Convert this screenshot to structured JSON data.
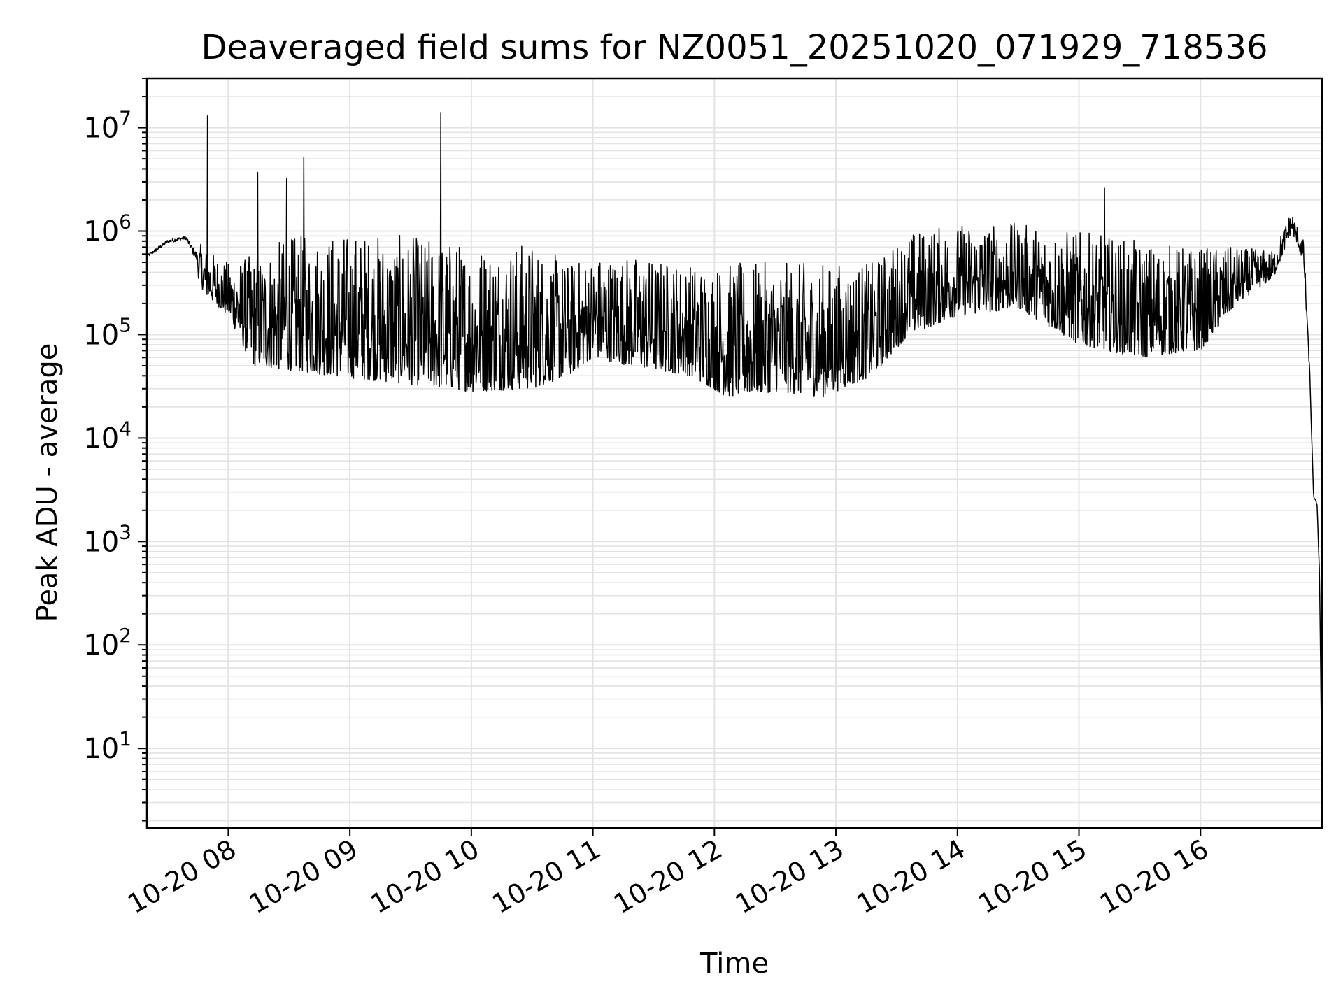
{
  "chart_data": {
    "type": "line",
    "title": "Deaveraged field sums for NZ0051_20251020_071929_718536",
    "xlabel": "Time",
    "ylabel": "Peak ADU - average",
    "yscale": "log",
    "ylim": [
      1.7,
      30000000
    ],
    "xlim_hours": [
      7.33,
      17.0
    ],
    "grid": true,
    "x_ticks": [
      {
        "hour": 8,
        "label": "10-20 08"
      },
      {
        "hour": 9,
        "label": "10-20 09"
      },
      {
        "hour": 10,
        "label": "10-20 10"
      },
      {
        "hour": 11,
        "label": "10-20 11"
      },
      {
        "hour": 12,
        "label": "10-20 12"
      },
      {
        "hour": 13,
        "label": "10-20 13"
      },
      {
        "hour": 14,
        "label": "10-20 14"
      },
      {
        "hour": 15,
        "label": "10-20 15"
      },
      {
        "hour": 16,
        "label": "10-20 16"
      }
    ],
    "y_ticks": [
      {
        "exp": 1,
        "base": "10",
        "sup": "1"
      },
      {
        "exp": 2,
        "base": "10",
        "sup": "2"
      },
      {
        "exp": 3,
        "base": "10",
        "sup": "3"
      },
      {
        "exp": 4,
        "base": "10",
        "sup": "4"
      },
      {
        "exp": 5,
        "base": "10",
        "sup": "5"
      },
      {
        "exp": 6,
        "base": "10",
        "sup": "6"
      },
      {
        "exp": 7,
        "base": "10",
        "sup": "7"
      }
    ],
    "series": [
      {
        "name": "Peak ADU - average",
        "color": "#000000",
        "envelope": [
          {
            "hour": 7.33,
            "low": 500000,
            "high": 650000
          },
          {
            "hour": 7.5,
            "low": 700000,
            "high": 900000
          },
          {
            "hour": 7.65,
            "low": 750000,
            "high": 1000000
          },
          {
            "hour": 7.8,
            "low": 250000,
            "high": 700000
          },
          {
            "hour": 8.0,
            "low": 150000,
            "high": 500000
          },
          {
            "hour": 8.2,
            "low": 50000,
            "high": 600000
          },
          {
            "hour": 8.5,
            "low": 45000,
            "high": 900000
          },
          {
            "hour": 9.0,
            "low": 38000,
            "high": 1000000
          },
          {
            "hour": 9.5,
            "low": 33000,
            "high": 900000
          },
          {
            "hour": 10.0,
            "low": 28000,
            "high": 800000
          },
          {
            "hour": 10.5,
            "low": 30000,
            "high": 800000
          },
          {
            "hour": 10.8,
            "low": 40000,
            "high": 500000
          },
          {
            "hour": 11.0,
            "low": 60000,
            "high": 600000
          },
          {
            "hour": 11.3,
            "low": 50000,
            "high": 600000
          },
          {
            "hour": 11.8,
            "low": 40000,
            "high": 500000
          },
          {
            "hour": 12.1,
            "low": 25000,
            "high": 500000
          },
          {
            "hour": 12.5,
            "low": 28000,
            "high": 500000
          },
          {
            "hour": 12.9,
            "low": 25000,
            "high": 500000
          },
          {
            "hour": 13.3,
            "low": 40000,
            "high": 500000
          },
          {
            "hour": 13.6,
            "low": 100000,
            "high": 1000000
          },
          {
            "hour": 14.0,
            "low": 150000,
            "high": 1200000
          },
          {
            "hour": 14.5,
            "low": 180000,
            "high": 1200000
          },
          {
            "hour": 15.0,
            "low": 80000,
            "high": 1000000
          },
          {
            "hour": 15.5,
            "low": 60000,
            "high": 800000
          },
          {
            "hour": 16.0,
            "low": 70000,
            "high": 700000
          },
          {
            "hour": 16.3,
            "low": 200000,
            "high": 700000
          },
          {
            "hour": 16.6,
            "low": 350000,
            "high": 650000
          },
          {
            "hour": 16.75,
            "low": 1000000,
            "high": 1600000
          },
          {
            "hour": 16.85,
            "low": 500000,
            "high": 800000
          },
          {
            "hour": 16.9,
            "low": 30000,
            "high": 50000
          },
          {
            "hour": 16.93,
            "low": 2500,
            "high": 3000
          },
          {
            "hour": 16.96,
            "low": 2000,
            "high": 2500
          },
          {
            "hour": 16.98,
            "low": 300,
            "high": 600
          },
          {
            "hour": 17.0,
            "low": 4,
            "high": 4
          }
        ],
        "spikes": [
          {
            "hour": 7.83,
            "value": 13000000
          },
          {
            "hour": 8.24,
            "value": 3700000
          },
          {
            "hour": 8.48,
            "value": 3200000
          },
          {
            "hour": 8.62,
            "value": 5200000
          },
          {
            "hour": 9.75,
            "value": 14000000
          },
          {
            "hour": 15.21,
            "value": 2600000
          }
        ]
      }
    ]
  }
}
